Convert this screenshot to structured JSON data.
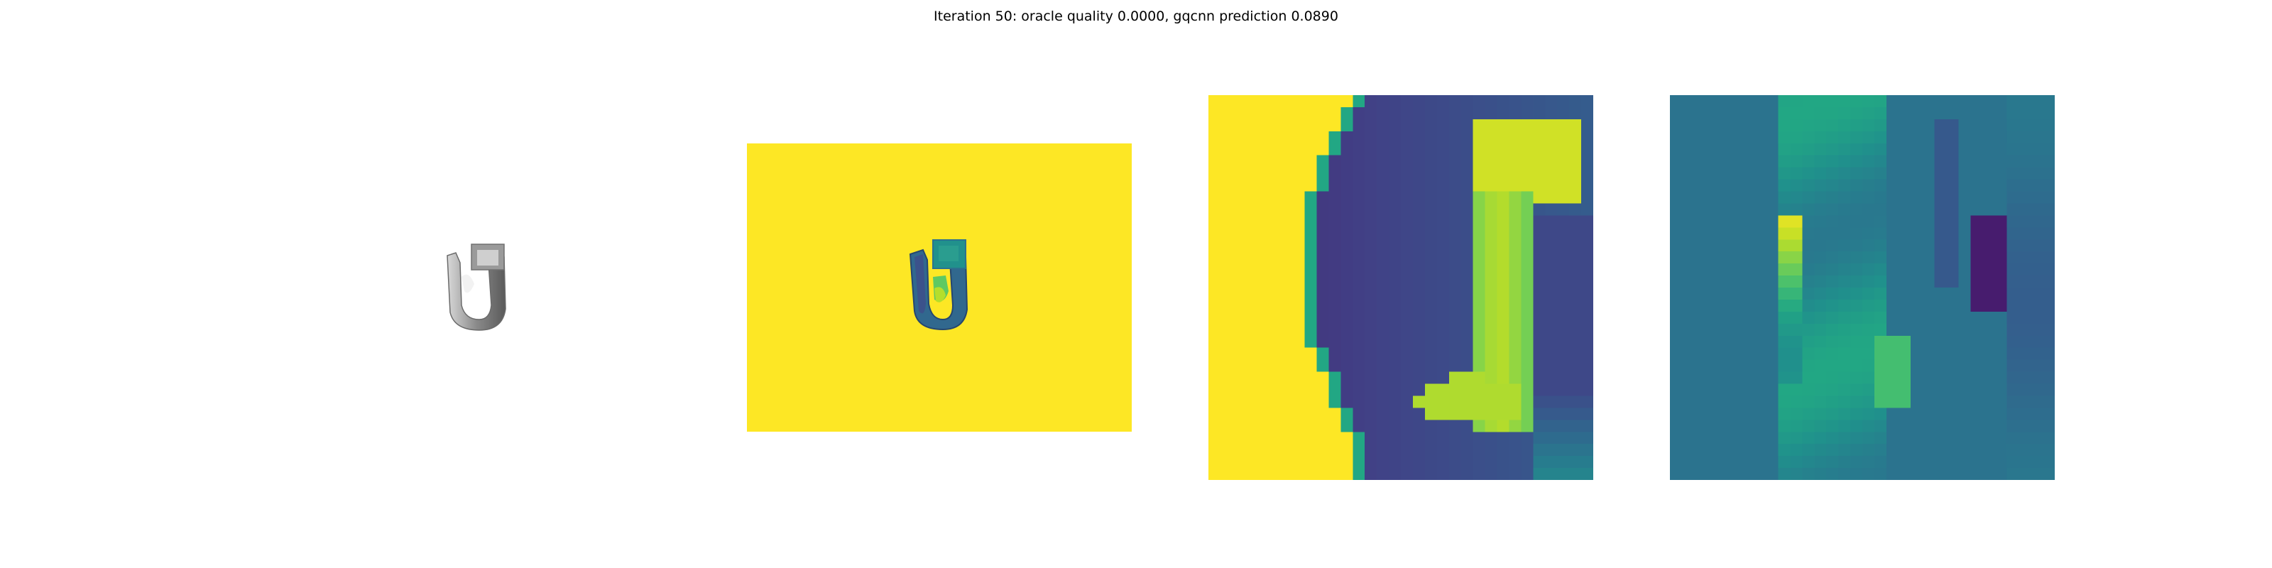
{
  "figure": {
    "title": "Iteration 50: oracle quality 0.0000, gqcnn prediction 0.0890"
  },
  "panels": [
    {
      "name": "rendered-object",
      "colormap": "gray"
    },
    {
      "name": "depth-image",
      "colormap": "viridis"
    },
    {
      "name": "depth-crop",
      "colormap": "viridis"
    },
    {
      "name": "gradient-crop",
      "colormap": "viridis"
    }
  ],
  "colors": {
    "viridis_yellow": "#fde725",
    "viridis_dark": "#440154",
    "viridis_teal": "#2d6e8e",
    "object_gray": "#9a9a9a"
  }
}
